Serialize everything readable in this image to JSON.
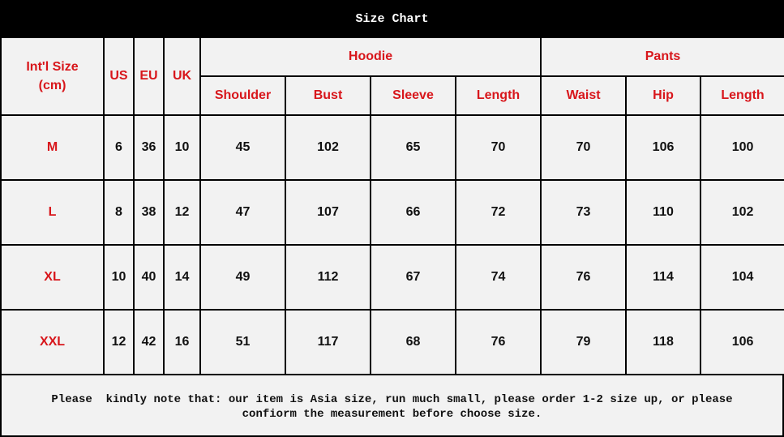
{
  "title": "Size Chart",
  "headers": {
    "size": "Int'l Size\n(cm)",
    "us": "US",
    "eu": "EU",
    "uk": "UK",
    "hoodie": "Hoodie",
    "pants": "Pants",
    "hoodie_cols": [
      "Shoulder",
      "Bust",
      "Sleeve",
      "Length"
    ],
    "pants_cols": [
      "Waist",
      "Hip",
      "Length"
    ]
  },
  "rows": [
    [
      "M",
      "6",
      "36",
      "10",
      "45",
      "102",
      "65",
      "70",
      "70",
      "106",
      "100"
    ],
    [
      "L",
      "8",
      "38",
      "12",
      "47",
      "107",
      "66",
      "72",
      "73",
      "110",
      "102"
    ],
    [
      "XL",
      "10",
      "40",
      "14",
      "49",
      "112",
      "67",
      "74",
      "76",
      "114",
      "104"
    ],
    [
      "XXL",
      "12",
      "42",
      "16",
      "51",
      "117",
      "68",
      "76",
      "79",
      "118",
      "106"
    ]
  ],
  "note_line1": "Please  kindly note that: our item is Asia size, run much small, please order 1-2 size up, or please",
  "note_line2": "confiorm the measurement before choose size.",
  "colors": {
    "header_text": "#d8161b",
    "background": "#f2f2f2",
    "title_bar": "#000000"
  }
}
